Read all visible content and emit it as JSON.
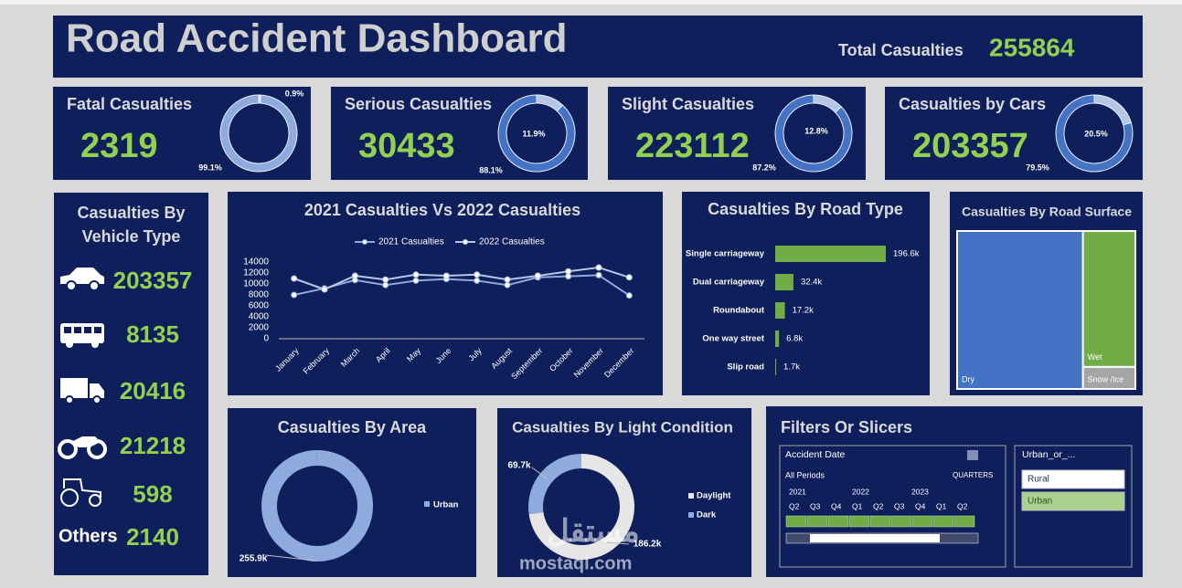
{
  "header": {
    "title": "Road Accident Dashboard",
    "total_label": "Total Casualties",
    "total_value": 255864
  },
  "vehicle_type": {
    "title": "Casualties By Vehicle Type",
    "items": [
      {
        "value": 203357
      },
      {
        "value": 8135
      },
      {
        "value": 20416
      },
      {
        "value": 21218
      },
      {
        "value": 598
      },
      {
        "label": "Others",
        "value": 2140
      }
    ]
  },
  "chart_data": [
    {
      "type": "donut",
      "title": "Fatal Casualties",
      "kpi_value": 2319,
      "values": [
        0.9,
        99.1
      ],
      "value_labels": [
        "0.9%",
        "99.1%"
      ],
      "colors": [
        "#dae3f3",
        "#8faadc"
      ]
    },
    {
      "type": "donut",
      "title": "Serious Casualties",
      "kpi_value": 30433,
      "values": [
        11.9,
        88.1
      ],
      "value_labels": [
        "11.9%",
        "88.1%"
      ],
      "colors": [
        "#b4c7e7",
        "#4472c4"
      ]
    },
    {
      "type": "donut",
      "title": "Slight Casualties",
      "kpi_value": 223112,
      "values": [
        12.8,
        87.2
      ],
      "value_labels": [
        "12.8%",
        "87.2%"
      ],
      "colors": [
        "#b4c7e7",
        "#4472c4"
      ]
    },
    {
      "type": "donut",
      "title": "Casualties by Cars",
      "kpi_value": 203357,
      "values": [
        20.5,
        79.5
      ],
      "value_labels": [
        "20.5%",
        "79.5%"
      ],
      "colors": [
        "#b4c7e7",
        "#4472c4"
      ]
    },
    {
      "type": "line",
      "title": "2021 Casualties Vs 2022 Casualties",
      "categories": [
        "January",
        "February",
        "March",
        "April",
        "May",
        "June",
        "July",
        "August",
        "September",
        "October",
        "November",
        "December"
      ],
      "series": [
        {
          "name": "2021 Casualties",
          "color": "#8faadc",
          "values": [
            8000,
            9200,
            10700,
            9800,
            10600,
            10900,
            10600,
            9800,
            11200,
            11400,
            11600,
            7900
          ]
        },
        {
          "name": "2022 Casualties",
          "color": "#b4c7e7",
          "values": [
            11000,
            9000,
            11500,
            10800,
            11700,
            11500,
            11700,
            10800,
            11500,
            12300,
            13000,
            11200
          ]
        }
      ],
      "ylim": [
        0,
        14000
      ],
      "yticks": [
        0,
        2000,
        4000,
        6000,
        8000,
        10000,
        12000,
        14000
      ],
      "legend": "top"
    },
    {
      "type": "bar",
      "title": "Casualties By Road Type",
      "categories": [
        "Single carriageway",
        "Dual carriageway",
        "Roundabout",
        "One way street",
        "Slip road"
      ],
      "values": [
        196600,
        32400,
        17200,
        6800,
        1700
      ],
      "value_labels": [
        "196.6k",
        "32.4k",
        "17.2k",
        "6.8k",
        "1.7k"
      ],
      "color": "#70ad47"
    },
    {
      "type": "treemap",
      "title": "Casualties By Road Surface",
      "categories": [
        "Dry",
        "Wet",
        "Snow /Ice"
      ],
      "values": [
        70.6,
        25.3,
        4.1
      ],
      "colors": [
        "#4472c4",
        "#70ad47",
        "#a5a5a5"
      ]
    },
    {
      "type": "donut",
      "title": "Casualties By Area",
      "categories": [
        "Urban"
      ],
      "values": [
        255900
      ],
      "value_labels": [
        "255.9k"
      ],
      "colors": [
        "#8faadc"
      ],
      "legend": "right"
    },
    {
      "type": "donut",
      "title": "Casualties By Light Condition",
      "categories": [
        "Daylight",
        "Dark"
      ],
      "values": [
        186200,
        69700
      ],
      "value_labels": [
        "186.2k",
        "69.7k"
      ],
      "colors": [
        "#e7e6e6",
        "#8faadc"
      ],
      "legend": "right"
    }
  ],
  "filters": {
    "title": "Filters Or Slicers",
    "timeline": {
      "title": "Accident Date",
      "period": "All Periods",
      "level": "QUARTERS",
      "years": [
        "2021",
        "2022",
        "2023"
      ],
      "quarters": [
        "Q2",
        "Q3",
        "Q4",
        "Q1",
        "Q2",
        "Q3",
        "Q4",
        "Q1",
        "Q2"
      ]
    },
    "slicer": {
      "title": "Urban_or_...",
      "items": [
        "Rural",
        "Urban"
      ]
    }
  },
  "watermark": {
    "logo": "مستقل",
    "text": "mostaql.com"
  }
}
